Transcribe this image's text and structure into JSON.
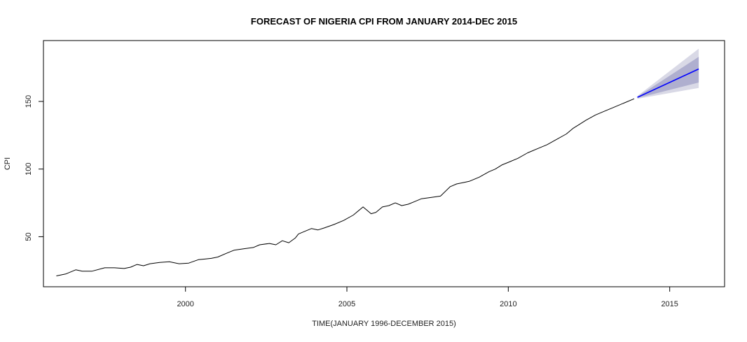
{
  "chart_data": {
    "type": "line",
    "title": "FORECAST OF NIGERIA CPI FROM JANUARY 2014-DEC 2015",
    "xlabel": "TIME(JANUARY 1996-DECEMBER 2015)",
    "ylabel": "CPI",
    "xlim": [
      1995.6,
      2016.7
    ],
    "ylim": [
      13,
      195
    ],
    "xticks": [
      2000,
      2005,
      2010,
      2015
    ],
    "xtick_labels": [
      "2000",
      "2005",
      "2010",
      "2015"
    ],
    "yticks": [
      50,
      100,
      150
    ],
    "ytick_labels": [
      "50",
      "100",
      "150"
    ],
    "grid": false,
    "legend": "none",
    "series": [
      {
        "name": "CPI (actual)",
        "color": "#000000",
        "x": [
          1996.0,
          1996.3,
          1996.6,
          1996.8,
          1997.1,
          1997.5,
          1997.8,
          1998.1,
          1998.3,
          1998.5,
          1998.7,
          1998.9,
          1999.2,
          1999.5,
          1999.8,
          2000.1,
          2000.4,
          2000.6,
          2000.8,
          2001.0,
          2001.3,
          2001.5,
          2001.8,
          2002.1,
          2002.3,
          2002.6,
          2002.8,
          2003.0,
          2003.2,
          2003.4,
          2003.5,
          2003.7,
          2003.9,
          2004.1,
          2004.3,
          2004.6,
          2004.9,
          2005.2,
          2005.5,
          2005.6,
          2005.75,
          2005.9,
          2006.1,
          2006.3,
          2006.5,
          2006.7,
          2006.9,
          2007.1,
          2007.3,
          2007.6,
          2007.9,
          2008.2,
          2008.4,
          2008.6,
          2008.8,
          2009.1,
          2009.4,
          2009.6,
          2009.8,
          2010.0,
          2010.3,
          2010.6,
          2010.9,
          2011.2,
          2011.5,
          2011.8,
          2012.0,
          2012.2,
          2012.4,
          2012.7,
          2013.0,
          2013.3,
          2013.6,
          2013.9
        ],
        "values": [
          21,
          22.5,
          25.5,
          24.5,
          24.5,
          27,
          27,
          26.5,
          27.5,
          29.5,
          28.5,
          30,
          31,
          31.5,
          30,
          30.5,
          33,
          33.5,
          34,
          35,
          38,
          40,
          41,
          42,
          44,
          45,
          44,
          47,
          45.5,
          49,
          52,
          54,
          56,
          55,
          56.5,
          59,
          62,
          66,
          72,
          70,
          67,
          68,
          72,
          73,
          75,
          73,
          74,
          76,
          78,
          79,
          80,
          87,
          89,
          90,
          91,
          94,
          98,
          100,
          103,
          105,
          108,
          112,
          115,
          118,
          122,
          126,
          130,
          133,
          136,
          140,
          143,
          146,
          149,
          152
        ]
      },
      {
        "name": "Point forecast",
        "color": "#0000ff",
        "x": [
          2014.0,
          2015.9
        ],
        "values": [
          153,
          174
        ]
      }
    ],
    "bands": [
      {
        "name": "95% prediction interval",
        "color": "#d9d9e6",
        "x": [
          2014.0,
          2015.9
        ],
        "lower": [
          152,
          160
        ],
        "upper": [
          154,
          189
        ]
      },
      {
        "name": "80% prediction interval",
        "color": "#afafcf",
        "x": [
          2014.0,
          2015.9
        ],
        "lower": [
          152.5,
          164
        ],
        "upper": [
          153.5,
          183
        ]
      }
    ]
  }
}
